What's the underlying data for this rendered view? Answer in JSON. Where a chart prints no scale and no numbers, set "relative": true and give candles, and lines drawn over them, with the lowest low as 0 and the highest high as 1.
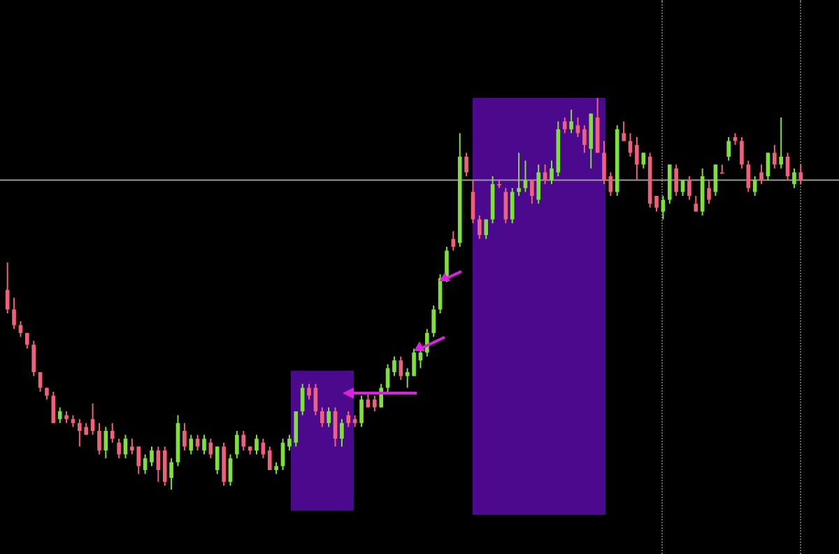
{
  "chart_data": {
    "type": "candlestick",
    "relative": true,
    "legend": false,
    "tick_labels": false,
    "categories": [
      null,
      null,
      null,
      null,
      null,
      null,
      null,
      null,
      null,
      null,
      null,
      null,
      null,
      null,
      null,
      null,
      null,
      null,
      null,
      null,
      null,
      null,
      null,
      null,
      null,
      null,
      null,
      null,
      null,
      null,
      null,
      null,
      null,
      null,
      null,
      null,
      null,
      null,
      null,
      null,
      null,
      null,
      null,
      null,
      null,
      null,
      null,
      null,
      null,
      null,
      null,
      null,
      null,
      null,
      null,
      null,
      null,
      null,
      null,
      null,
      null,
      null,
      null,
      null,
      null,
      null,
      null,
      null,
      null,
      null,
      null,
      null,
      null,
      null,
      null,
      null,
      null,
      null,
      null,
      null,
      null,
      null,
      null,
      null,
      null,
      null,
      null,
      null,
      null,
      null,
      null,
      null,
      null,
      null,
      null,
      null,
      null,
      null,
      null,
      null,
      null,
      null,
      null,
      null,
      null,
      null,
      null,
      null,
      null,
      null,
      null,
      null,
      null,
      null,
      null,
      null,
      null,
      null,
      null,
      null,
      null,
      null
    ],
    "ohlc": [
      [
        0.51,
        0.58,
        0.45,
        0.46
      ],
      [
        0.46,
        0.49,
        0.41,
        0.42
      ],
      [
        0.42,
        0.43,
        0.39,
        0.4
      ],
      [
        0.4,
        0.4,
        0.36,
        0.37
      ],
      [
        0.37,
        0.38,
        0.29,
        0.3
      ],
      [
        0.3,
        0.3,
        0.25,
        0.26
      ],
      [
        0.26,
        0.26,
        0.23,
        0.24
      ],
      [
        0.24,
        0.25,
        0.17,
        0.17
      ],
      [
        0.18,
        0.21,
        0.17,
        0.2
      ],
      [
        0.19,
        0.2,
        0.17,
        0.18
      ],
      [
        0.18,
        0.19,
        0.16,
        0.17
      ],
      [
        0.17,
        0.18,
        0.11,
        0.15
      ],
      [
        0.16,
        0.17,
        0.14,
        0.14
      ],
      [
        0.18,
        0.22,
        0.14,
        0.15
      ],
      [
        0.15,
        0.17,
        0.09,
        0.1
      ],
      [
        0.1,
        0.16,
        0.08,
        0.15
      ],
      [
        0.15,
        0.17,
        0.12,
        0.13
      ],
      [
        0.12,
        0.13,
        0.08,
        0.09
      ],
      [
        0.09,
        0.14,
        0.08,
        0.13
      ],
      [
        0.11,
        0.13,
        0.09,
        0.1
      ],
      [
        0.11,
        0.11,
        0.04,
        0.06
      ],
      [
        0.05,
        0.09,
        0.04,
        0.08
      ],
      [
        0.07,
        0.11,
        0.06,
        0.1
      ],
      [
        0.1,
        0.11,
        0.02,
        0.05
      ],
      [
        0.1,
        0.11,
        0.01,
        0.02
      ],
      [
        0.03,
        0.08,
        0,
        0.07
      ],
      [
        0.07,
        0.19,
        0.06,
        0.17
      ],
      [
        0.15,
        0.17,
        0.1,
        0.11
      ],
      [
        0.1,
        0.14,
        0.09,
        0.13
      ],
      [
        0.13,
        0.14,
        0.1,
        0.11
      ],
      [
        0.1,
        0.14,
        0.09,
        0.13
      ],
      [
        0.12,
        0.13,
        0.08,
        0.09
      ],
      [
        0.05,
        0.11,
        0.04,
        0.11
      ],
      [
        0.11,
        0.12,
        0.01,
        0.02
      ],
      [
        0.02,
        0.09,
        0.01,
        0.08
      ],
      [
        0.09,
        0.15,
        0.08,
        0.14
      ],
      [
        0.14,
        0.15,
        0.1,
        0.11
      ],
      [
        0.11,
        0.11,
        0.09,
        0.1
      ],
      [
        0.1,
        0.14,
        0.09,
        0.13
      ],
      [
        0.12,
        0.13,
        0.08,
        0.09
      ],
      [
        0.1,
        0.11,
        0.05,
        0.05
      ],
      [
        0.05,
        0.07,
        0.04,
        0.06
      ],
      [
        0.06,
        0.13,
        0.05,
        0.12
      ],
      [
        0.11,
        0.14,
        0.1,
        0.13
      ],
      [
        0.12,
        0.2,
        0.11,
        0.2
      ],
      [
        0.2,
        0.27,
        0.19,
        0.26
      ],
      [
        0.26,
        0.27,
        0.23,
        0.24
      ],
      [
        0.26,
        0.27,
        0.19,
        0.2
      ],
      [
        0.2,
        0.21,
        0.16,
        0.17
      ],
      [
        0.17,
        0.21,
        0.16,
        0.2
      ],
      [
        0.2,
        0.21,
        0.11,
        0.13
      ],
      [
        0.13,
        0.18,
        0.11,
        0.17
      ],
      [
        0.19,
        0.2,
        0.16,
        0.17
      ],
      [
        0.18,
        0.19,
        0.16,
        0.17
      ],
      [
        0.17,
        0.24,
        0.16,
        0.23
      ],
      [
        0.23,
        0.25,
        0.21,
        0.21
      ],
      [
        0.23,
        0.24,
        0.2,
        0.21
      ],
      [
        0.21,
        0.27,
        0.21,
        0.26
      ],
      [
        0.26,
        0.32,
        0.25,
        0.31
      ],
      [
        0.3,
        0.34,
        0.29,
        0.33
      ],
      [
        0.33,
        0.34,
        0.28,
        0.29
      ],
      [
        0.29,
        0.31,
        0.26,
        0.3
      ],
      [
        0.29,
        0.36,
        0.29,
        0.35
      ],
      [
        0.33,
        0.36,
        0.31,
        0.35
      ],
      [
        0.35,
        0.41,
        0.34,
        0.4
      ],
      [
        0.4,
        0.47,
        0.39,
        0.46
      ],
      [
        0.46,
        0.55,
        0.45,
        0.54
      ],
      [
        0.54,
        0.62,
        0.53,
        0.61
      ],
      [
        0.64,
        0.66,
        0.61,
        0.62
      ],
      [
        0.63,
        0.91,
        0.62,
        0.85
      ],
      [
        0.85,
        0.86,
        0.8,
        0.81
      ],
      [
        0.76,
        0.79,
        0.68,
        0.69
      ],
      [
        0.69,
        0.7,
        0.64,
        0.65
      ],
      [
        0.65,
        0.69,
        0.64,
        0.69
      ],
      [
        0.69,
        0.8,
        0.68,
        0.78
      ],
      [
        0.78,
        0.79,
        0.77,
        0.78
      ],
      [
        0.76,
        0.77,
        0.68,
        0.69
      ],
      [
        0.69,
        0.77,
        0.68,
        0.76
      ],
      [
        0.76,
        0.86,
        0.75,
        0.77
      ],
      [
        0.77,
        0.84,
        0.76,
        0.79
      ],
      [
        0.79,
        0.79,
        0.73,
        0.75
      ],
      [
        0.74,
        0.83,
        0.73,
        0.81
      ],
      [
        0.81,
        0.83,
        0.78,
        0.79
      ],
      [
        0.79,
        0.84,
        0.78,
        0.82
      ],
      [
        0.81,
        0.94,
        0.8,
        0.92
      ],
      [
        0.94,
        0.95,
        0.91,
        0.92
      ],
      [
        0.92,
        0.97,
        0.91,
        0.94
      ],
      [
        0.93,
        0.95,
        0.9,
        0.91
      ],
      [
        0.92,
        0.93,
        0.86,
        0.88
      ],
      [
        0.87,
        0.96,
        0.82,
        0.96
      ],
      [
        0.95,
        1,
        0.86,
        0.86
      ],
      [
        0.86,
        0.89,
        0.78,
        0.79
      ],
      [
        0.8,
        0.81,
        0.75,
        0.76
      ],
      [
        0.76,
        0.93,
        0.75,
        0.92
      ],
      [
        0.91,
        0.94,
        0.89,
        0.89
      ],
      [
        0.89,
        0.91,
        0.85,
        0.86
      ],
      [
        0.88,
        0.9,
        0.79,
        0.83
      ],
      [
        0.83,
        0.86,
        0.82,
        0.86
      ],
      [
        0.85,
        0.86,
        0.72,
        0.73
      ],
      [
        0.75,
        0.75,
        0.71,
        0.72
      ],
      [
        0.71,
        0.75,
        0.69,
        0.74
      ],
      [
        0.74,
        0.83,
        0.73,
        0.83
      ],
      [
        0.82,
        0.83,
        0.75,
        0.76
      ],
      [
        0.76,
        0.79,
        0.75,
        0.79
      ],
      [
        0.79,
        0.8,
        0.74,
        0.75
      ],
      [
        0.73,
        0.75,
        0.71,
        0.71
      ],
      [
        0.71,
        0.82,
        0.7,
        0.8
      ],
      [
        0.77,
        0.79,
        0.73,
        0.74
      ],
      [
        0.76,
        0.83,
        0.75,
        0.83
      ],
      [
        0.81,
        0.83,
        0.81,
        0.81
      ],
      [
        0.85,
        0.9,
        0.84,
        0.89
      ],
      [
        0.9,
        0.91,
        0.88,
        0.89
      ],
      [
        0.89,
        0.9,
        0.82,
        0.83
      ],
      [
        0.83,
        0.84,
        0.76,
        0.77
      ],
      [
        0.76,
        0.8,
        0.75,
        0.79
      ],
      [
        0.81,
        0.83,
        0.78,
        0.79
      ],
      [
        0.8,
        0.86,
        0.79,
        0.86
      ],
      [
        0.86,
        0.88,
        0.82,
        0.83
      ],
      [
        0.83,
        0.95,
        0.82,
        0.85
      ],
      [
        0.85,
        0.86,
        0.79,
        0.8
      ],
      [
        0.78,
        0.82,
        0.77,
        0.81
      ],
      [
        0.81,
        0.83,
        0.78,
        0.79
      ]
    ],
    "colors": [
      "#f0607a",
      "#f0607a",
      "#f0607a",
      "#f0607a",
      "#f0607a",
      "#f0607a",
      "#f0607a",
      "#f0607a",
      "#7ee03a",
      "#f0607a",
      "#f0607a",
      "#f0607a",
      "#f0607a",
      "#f0607a",
      "#f0607a",
      "#7ee03a",
      "#f0607a",
      "#f0607a",
      "#7ee03a",
      "#f0607a",
      "#f0607a",
      "#7ee03a",
      "#7ee03a",
      "#f0607a",
      "#f0607a",
      "#7ee03a",
      "#7ee03a",
      "#f0607a",
      "#7ee03a",
      "#f0607a",
      "#7ee03a",
      "#f0607a",
      "#7ee03a",
      "#f0607a",
      "#7ee03a",
      "#7ee03a",
      "#f0607a",
      "#f0607a",
      "#7ee03a",
      "#f0607a",
      "#f0607a",
      "#7ee03a",
      "#7ee03a",
      "#7ee03a",
      "#7ee03a",
      "#7ee03a",
      "#f0607a",
      "#f0607a",
      "#f0607a",
      "#7ee03a",
      "#f0607a",
      "#7ee03a",
      "#f0607a",
      "#f0607a",
      "#7ee03a",
      "#f0607a",
      "#f0607a",
      "#7ee03a",
      "#7ee03a",
      "#7ee03a",
      "#f0607a",
      "#7ee03a",
      "#7ee03a",
      "#7ee03a",
      "#7ee03a",
      "#7ee03a",
      "#7ee03a",
      "#7ee03a",
      "#f0607a",
      "#7ee03a",
      "#f0607a",
      "#f0607a",
      "#f0607a",
      "#7ee03a",
      "#7ee03a",
      "#f0607a",
      "#f0607a",
      "#7ee03a",
      "#7ee03a",
      "#7ee03a",
      "#f0607a",
      "#7ee03a",
      "#f0607a",
      "#7ee03a",
      "#7ee03a",
      "#f0607a",
      "#7ee03a",
      "#f0607a",
      "#f0607a",
      "#7ee03a",
      "#f0607a",
      "#f0607a",
      "#f0607a",
      "#7ee03a",
      "#f0607a",
      "#f0607a",
      "#f0607a",
      "#7ee03a",
      "#f0607a",
      "#f0607a",
      "#7ee03a",
      "#7ee03a",
      "#f0607a",
      "#7ee03a",
      "#f0607a",
      "#f0607a",
      "#7ee03a",
      "#f0607a",
      "#7ee03a",
      "#f0607a",
      "#7ee03a",
      "#f0607a",
      "#f0607a",
      "#f0607a",
      "#7ee03a",
      "#f0607a",
      "#7ee03a",
      "#f0607a",
      "#7ee03a",
      "#f0607a",
      "#7ee03a",
      "#f0607a"
    ],
    "ref_lines": [
      {
        "axis": "y",
        "value": 0.79,
        "color": "#9a9a9a"
      }
    ]
  }
}
